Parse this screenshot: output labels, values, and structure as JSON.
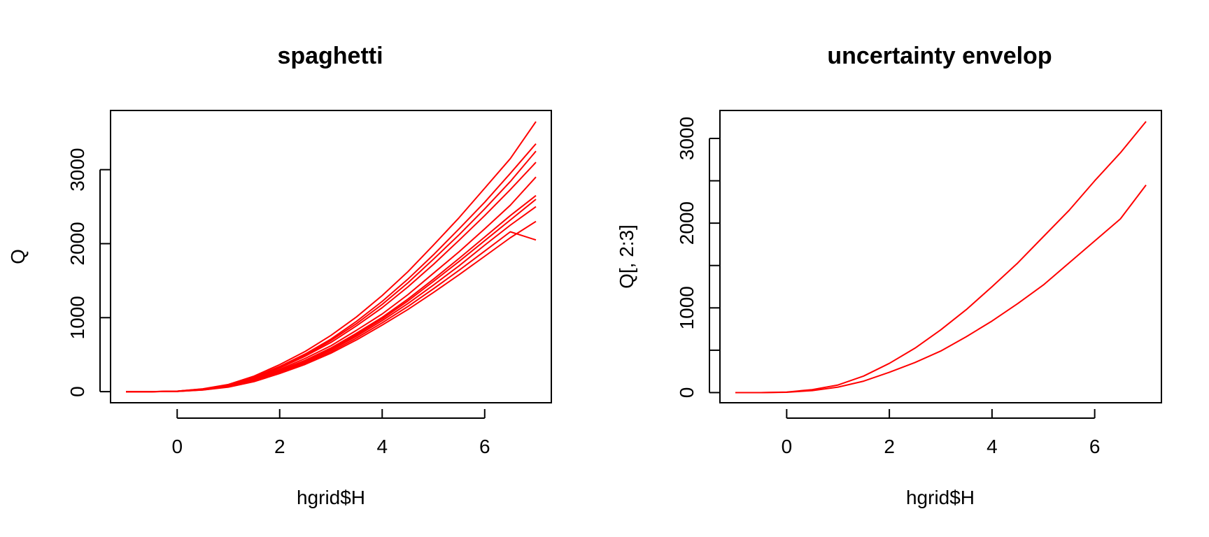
{
  "chart_data": [
    {
      "type": "line",
      "title": "spaghetti",
      "xlabel": "hgrid$H",
      "ylabel": "Q",
      "xlim": [
        -1.3,
        7.3
      ],
      "ylim": [
        -150,
        3800
      ],
      "xticks": [
        0,
        2,
        4,
        6
      ],
      "yticks": [
        0,
        1000,
        2000,
        3000
      ],
      "xtick_labels": [
        "0",
        "2",
        "4",
        "6"
      ],
      "ytick_labels": [
        "0",
        "1000",
        "2000",
        "3000"
      ],
      "grid": false,
      "legend": "none",
      "line_color": "#ff0000",
      "x": [
        -1,
        -0.5,
        0,
        0.5,
        1,
        1.5,
        2,
        2.5,
        3,
        3.5,
        4,
        4.5,
        5,
        5.5,
        6,
        6.5,
        7
      ],
      "series": [
        {
          "values": [
            0,
            0,
            5,
            30,
            80,
            170,
            300,
            450,
            620,
            830,
            1050,
            1310,
            1600,
            1890,
            2200,
            2520,
            2900
          ]
        },
        {
          "values": [
            0,
            0,
            4,
            25,
            70,
            150,
            270,
            400,
            560,
            750,
            960,
            1190,
            1440,
            1700,
            1980,
            2250,
            2500
          ]
        },
        {
          "values": [
            0,
            0,
            6,
            35,
            90,
            195,
            340,
            510,
            710,
            950,
            1220,
            1520,
            1850,
            2200,
            2560,
            2950,
            3350
          ]
        },
        {
          "values": [
            0,
            0,
            3,
            22,
            62,
            135,
            245,
            370,
            520,
            700,
            900,
            1110,
            1340,
            1580,
            1830,
            2080,
            2300
          ]
        },
        {
          "values": [
            0,
            0,
            7,
            38,
            98,
            210,
            365,
            545,
            760,
            1010,
            1300,
            1620,
            1980,
            2350,
            2750,
            3150,
            3650
          ]
        },
        {
          "values": [
            0,
            0,
            5,
            28,
            75,
            160,
            285,
            425,
            590,
            790,
            1005,
            1250,
            1520,
            1800,
            2090,
            2380,
            2650
          ]
        },
        {
          "values": [
            0,
            0,
            5,
            32,
            85,
            180,
            320,
            480,
            665,
            890,
            1135,
            1415,
            1720,
            2045,
            2380,
            2730,
            3100
          ]
        },
        {
          "values": [
            0,
            0,
            4,
            24,
            66,
            142,
            258,
            385,
            540,
            725,
            930,
            1150,
            1390,
            1640,
            1900,
            2160,
            2050
          ]
        },
        {
          "values": [
            0,
            0,
            6,
            33,
            88,
            188,
            330,
            495,
            690,
            920,
            1180,
            1470,
            1790,
            2120,
            2470,
            2840,
            3250
          ]
        },
        {
          "values": [
            0,
            0,
            4,
            27,
            72,
            155,
            278,
            415,
            575,
            770,
            985,
            1225,
            1490,
            1760,
            2040,
            2320,
            2600
          ]
        }
      ]
    },
    {
      "type": "line",
      "title": "uncertainty envelop",
      "xlabel": "hgrid$H",
      "ylabel": "Q[, 2:3]",
      "xlim": [
        -1.3,
        7.3
      ],
      "ylim": [
        -120,
        3330
      ],
      "xticks": [
        0,
        2,
        4,
        6
      ],
      "yticks": [
        0,
        500,
        1000,
        1500,
        2000,
        2500,
        3000
      ],
      "xtick_labels": [
        "0",
        "2",
        "4",
        "6"
      ],
      "ytick_labels": [
        "0",
        "",
        "1000",
        "",
        "2000",
        "",
        "3000"
      ],
      "grid": false,
      "legend": "none",
      "line_color": "#ff0000",
      "x": [
        -1,
        -0.5,
        0,
        0.5,
        1,
        1.5,
        2,
        2.5,
        3,
        3.5,
        4,
        4.5,
        5,
        5.5,
        6,
        6.5,
        7
      ],
      "series": [
        {
          "values": [
            0,
            0,
            6,
            35,
            90,
            195,
            345,
            525,
            740,
            980,
            1250,
            1530,
            1840,
            2150,
            2500,
            2830,
            3200
          ]
        },
        {
          "values": [
            0,
            0,
            4,
            24,
            65,
            135,
            240,
            355,
            490,
            660,
            845,
            1050,
            1270,
            1530,
            1790,
            2050,
            2450
          ]
        }
      ]
    }
  ]
}
